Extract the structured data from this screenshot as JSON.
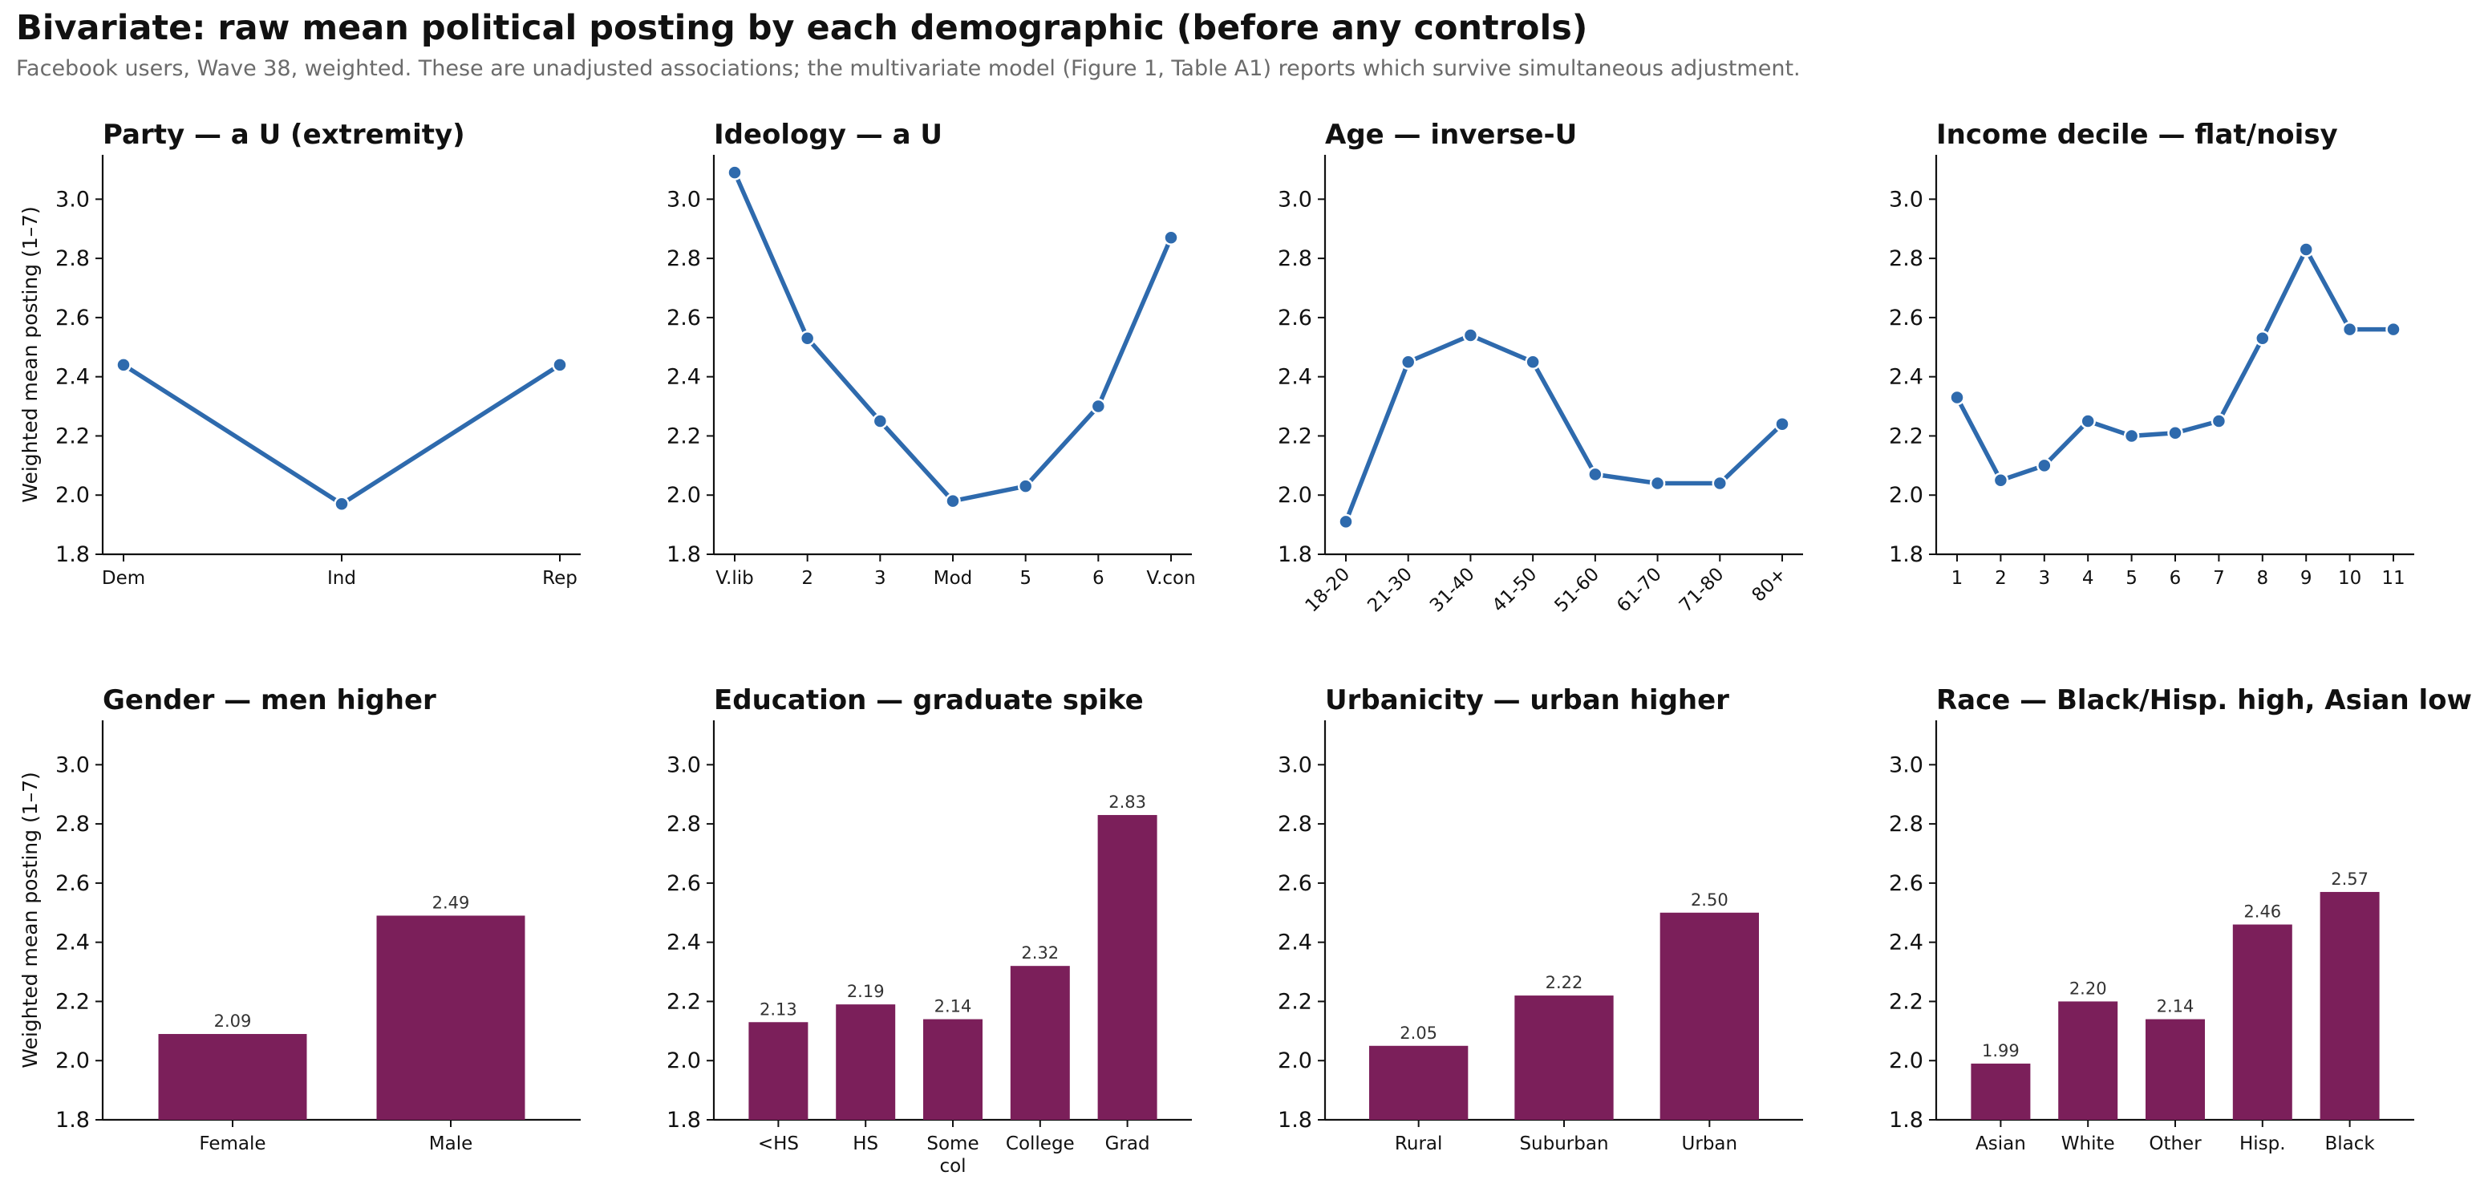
{
  "title": "Bivariate: raw mean political posting by each demographic (before any controls)",
  "subtitle": "Facebook users, Wave 38, weighted. These are unadjusted associations; the multivariate model (Figure 1, Table A1) reports which survive simultaneous adjustment.",
  "colors": {
    "line": "#2e6aad",
    "bar": "#7b1f5a",
    "axis": "#111111",
    "value_label": "#333333"
  },
  "chart_data": [
    {
      "type": "line",
      "title": "Party — a U (extremity)",
      "ylabel": "Weighted mean posting (1–7)",
      "categories": [
        "Dem",
        "Ind",
        "Rep"
      ],
      "values": [
        2.44,
        1.97,
        2.44
      ],
      "ylim": [
        1.8,
        3.15
      ],
      "yticks": [
        1.8,
        2.0,
        2.2,
        2.4,
        2.6,
        2.8,
        3.0
      ],
      "rotate_ticks": false,
      "grid": false
    },
    {
      "type": "line",
      "title": "Ideology — a U",
      "ylabel": "",
      "categories": [
        "V.lib",
        "2",
        "3",
        "Mod",
        "5",
        "6",
        "V.con"
      ],
      "values": [
        3.09,
        2.53,
        2.25,
        1.98,
        2.03,
        2.3,
        2.87
      ],
      "ylim": [
        1.8,
        3.15
      ],
      "yticks": [
        1.8,
        2.0,
        2.2,
        2.4,
        2.6,
        2.8,
        3.0
      ],
      "rotate_ticks": false,
      "grid": false
    },
    {
      "type": "line",
      "title": "Age — inverse-U",
      "ylabel": "",
      "categories": [
        "18-20",
        "21-30",
        "31-40",
        "41-50",
        "51-60",
        "61-70",
        "71-80",
        "80+"
      ],
      "values": [
        1.91,
        2.45,
        2.54,
        2.45,
        2.07,
        2.04,
        2.04,
        2.24
      ],
      "ylim": [
        1.8,
        3.15
      ],
      "yticks": [
        1.8,
        2.0,
        2.2,
        2.4,
        2.6,
        2.8,
        3.0
      ],
      "rotate_ticks": true,
      "grid": false
    },
    {
      "type": "line",
      "title": "Income decile — flat/noisy",
      "ylabel": "",
      "categories": [
        "1",
        "2",
        "3",
        "4",
        "5",
        "6",
        "7",
        "8",
        "9",
        "10",
        "11"
      ],
      "values": [
        2.33,
        2.05,
        2.1,
        2.25,
        2.2,
        2.21,
        2.25,
        2.53,
        2.83,
        2.56,
        2.56
      ],
      "ylim": [
        1.8,
        3.15
      ],
      "yticks": [
        1.8,
        2.0,
        2.2,
        2.4,
        2.6,
        2.8,
        3.0
      ],
      "rotate_ticks": false,
      "grid": false
    },
    {
      "type": "bar",
      "title": "Gender — men higher",
      "ylabel": "Weighted mean posting (1–7)",
      "categories": [
        "Female",
        "Male"
      ],
      "values": [
        2.09,
        2.49
      ],
      "value_labels": [
        "2.09",
        "2.49"
      ],
      "ylim": [
        1.8,
        3.15
      ],
      "yticks": [
        1.8,
        2.0,
        2.2,
        2.4,
        2.6,
        2.8,
        3.0
      ],
      "grid": false
    },
    {
      "type": "bar",
      "title": "Education — graduate spike",
      "ylabel": "",
      "categories": [
        "<HS",
        "HS",
        "Some\ncol",
        "College",
        "Grad"
      ],
      "values": [
        2.13,
        2.19,
        2.14,
        2.32,
        2.83
      ],
      "value_labels": [
        "2.13",
        "2.19",
        "2.14",
        "2.32",
        "2.83"
      ],
      "ylim": [
        1.8,
        3.15
      ],
      "yticks": [
        1.8,
        2.0,
        2.2,
        2.4,
        2.6,
        2.8,
        3.0
      ],
      "grid": false
    },
    {
      "type": "bar",
      "title": "Urbanicity — urban higher",
      "ylabel": "",
      "categories": [
        "Rural",
        "Suburban",
        "Urban"
      ],
      "values": [
        2.05,
        2.22,
        2.5
      ],
      "value_labels": [
        "2.05",
        "2.22",
        "2.50"
      ],
      "ylim": [
        1.8,
        3.15
      ],
      "yticks": [
        1.8,
        2.0,
        2.2,
        2.4,
        2.6,
        2.8,
        3.0
      ],
      "grid": false
    },
    {
      "type": "bar",
      "title": "Race — Black/Hisp. high, Asian low",
      "ylabel": "",
      "categories": [
        "Asian",
        "White",
        "Other",
        "Hisp.",
        "Black"
      ],
      "values": [
        1.99,
        2.2,
        2.14,
        2.46,
        2.57
      ],
      "value_labels": [
        "1.99",
        "2.20",
        "2.14",
        "2.46",
        "2.57"
      ],
      "ylim": [
        1.8,
        3.15
      ],
      "yticks": [
        1.8,
        2.0,
        2.2,
        2.4,
        2.6,
        2.8,
        3.0
      ],
      "grid": false
    }
  ]
}
